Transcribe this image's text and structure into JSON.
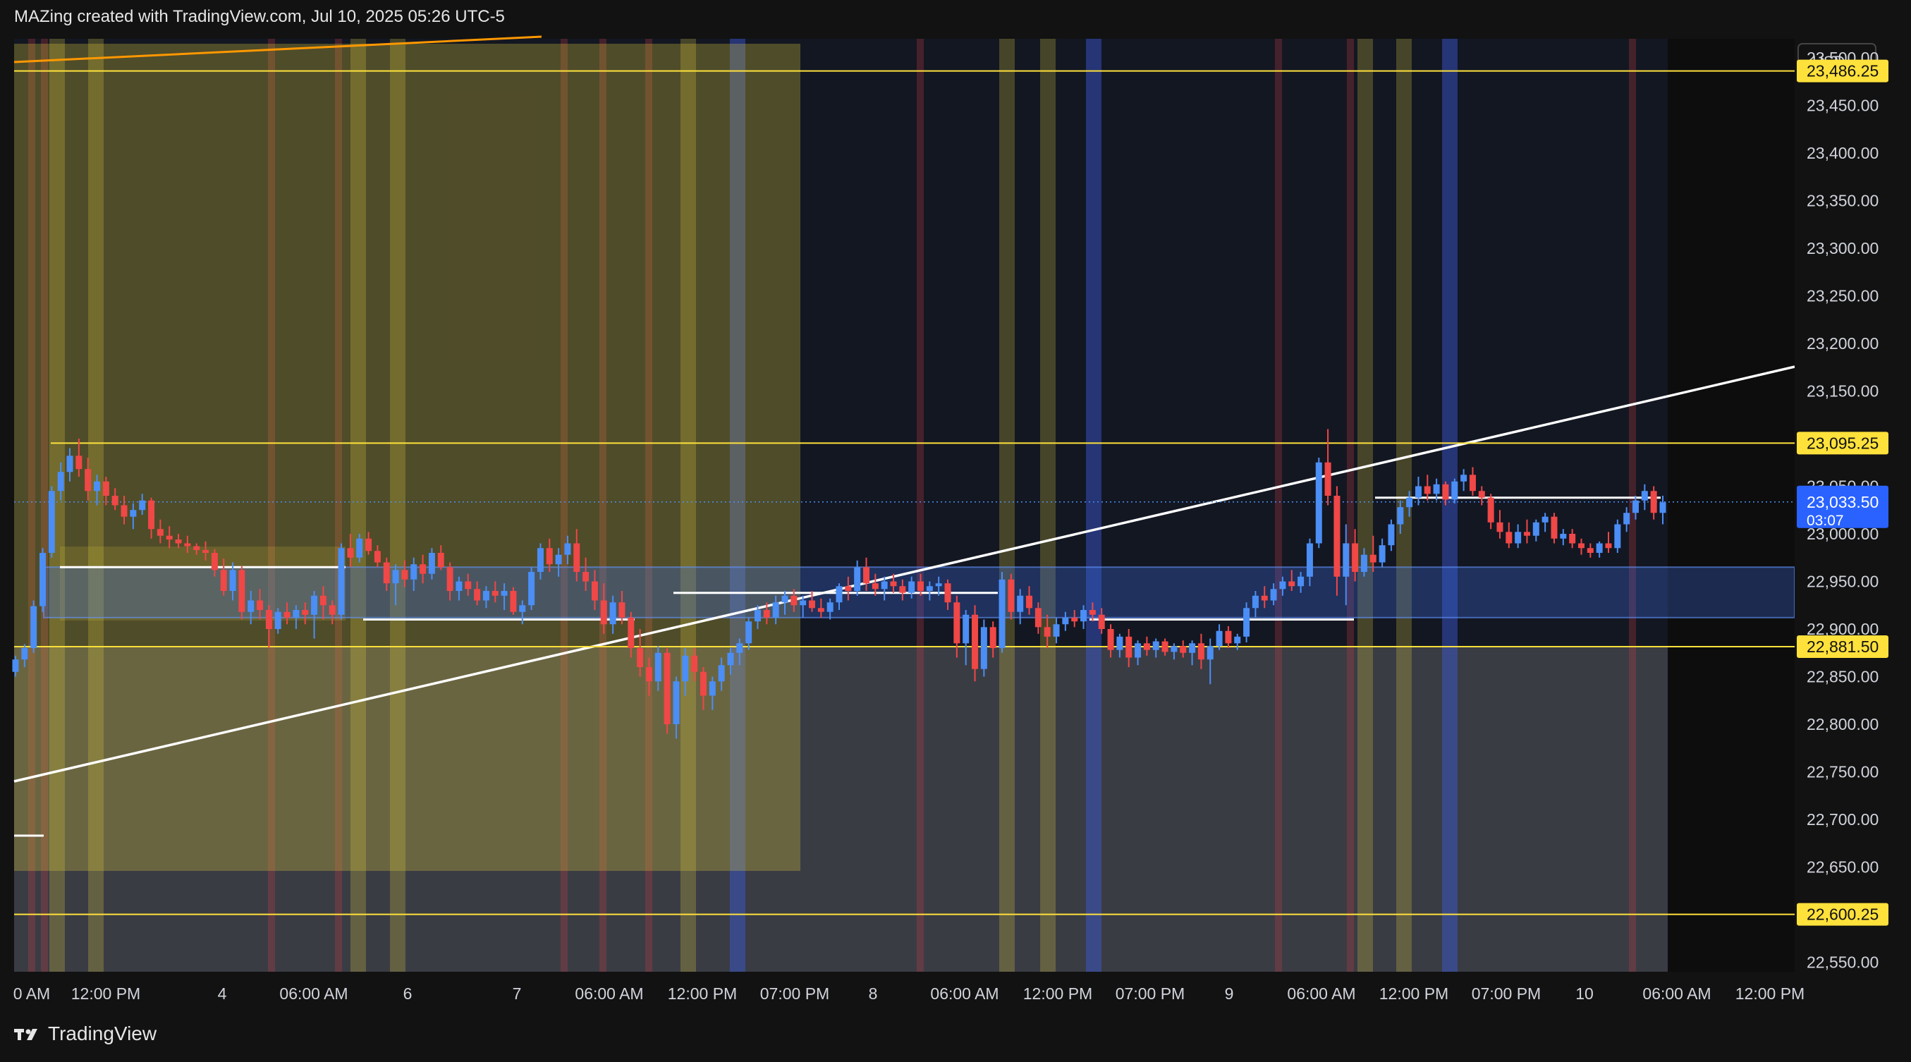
{
  "header": {
    "title": "MAZing created with TradingView.com, Jul 10, 2025 05:26 UTC-5"
  },
  "brand": {
    "name": "TradingView"
  },
  "colors": {
    "background": "#121212",
    "zone_bg": "#131722",
    "up_candle": "#4b8ef5",
    "down_candle": "#f04747",
    "level_line": "#ffe13b",
    "trend_line": "#ffffff",
    "price_tag": "#2962ff",
    "orange_line": "#ff9800"
  },
  "chart_data": {
    "type": "candlestick",
    "currency": "USD",
    "ylim": [
      22540,
      23520
    ],
    "y_ticks": [
      "23,500.00",
      "23,450.00",
      "23,400.00",
      "23,350.00",
      "23,300.00",
      "23,250.00",
      "23,200.00",
      "23,150.00",
      "23,100.00",
      "23,050.00",
      "23,000.00",
      "22,950.00",
      "22,900.00",
      "22,850.00",
      "22,800.00",
      "22,750.00",
      "22,700.00",
      "22,650.00",
      "22,600.00",
      "22,550.00"
    ],
    "x_labels": [
      "0 AM",
      "12:00 PM",
      "4",
      "06:00 AM",
      "6",
      "7",
      "06:00 AM",
      "12:00 PM",
      "07:00 PM",
      "8",
      "06:00 AM",
      "12:00 PM",
      "07:00 PM",
      "9",
      "06:00 AM",
      "12:00 PM",
      "07:00 PM",
      "10",
      "06:00 AM",
      "12:00 PM"
    ],
    "levels": [
      {
        "label": "23,486.25",
        "value": 23486.25
      },
      {
        "label": "23,095.25",
        "value": 23095.25
      },
      {
        "label": "22,881.50",
        "value": 22881.5
      },
      {
        "label": "22,600.25",
        "value": 22600.25
      }
    ],
    "current_price": {
      "label": "23,033.50",
      "value": 23033.5,
      "countdown": "03:07"
    },
    "candles": [
      [
        22855,
        22872,
        22850,
        22868
      ],
      [
        22868,
        22884,
        22860,
        22880
      ],
      [
        22880,
        22930,
        22875,
        22924
      ],
      [
        22924,
        22985,
        22918,
        22980
      ],
      [
        22980,
        23050,
        22975,
        23045
      ],
      [
        23045,
        23075,
        23035,
        23065
      ],
      [
        23065,
        23090,
        23055,
        23082
      ],
      [
        23082,
        23100,
        23060,
        23068
      ],
      [
        23068,
        23080,
        23035,
        23045
      ],
      [
        23045,
        23062,
        23030,
        23055
      ],
      [
        23055,
        23060,
        23030,
        23040
      ],
      [
        23040,
        23048,
        23025,
        23030
      ],
      [
        23030,
        23040,
        23010,
        23018
      ],
      [
        23018,
        23032,
        23005,
        23025
      ],
      [
        23025,
        23042,
        23020,
        23035
      ],
      [
        23035,
        23038,
        22995,
        23005
      ],
      [
        23005,
        23015,
        22990,
        22998
      ],
      [
        22998,
        23008,
        22985,
        22994
      ],
      [
        22994,
        23000,
        22985,
        22990
      ],
      [
        22990,
        22998,
        22980,
        22987
      ],
      [
        22987,
        22990,
        22978,
        22983
      ],
      [
        22983,
        22992,
        22972,
        22980
      ],
      [
        22980,
        22984,
        22955,
        22962
      ],
      [
        22962,
        22974,
        22935,
        22940
      ],
      [
        22940,
        22970,
        22930,
        22962
      ],
      [
        22962,
        22966,
        22910,
        22918
      ],
      [
        22918,
        22940,
        22905,
        22930
      ],
      [
        22930,
        22942,
        22910,
        22920
      ],
      [
        22920,
        22925,
        22880,
        22900
      ],
      [
        22900,
        22922,
        22895,
        22918
      ],
      [
        22918,
        22928,
        22905,
        22912
      ],
      [
        22912,
        22925,
        22900,
        22920
      ],
      [
        22920,
        22928,
        22905,
        22915
      ],
      [
        22915,
        22940,
        22890,
        22935
      ],
      [
        22935,
        22945,
        22910,
        22925
      ],
      [
        22925,
        22930,
        22905,
        22915
      ],
      [
        22915,
        22990,
        22910,
        22985
      ],
      [
        22985,
        23000,
        22965,
        22975
      ],
      [
        22975,
        23000,
        22970,
        22995
      ],
      [
        22995,
        23002,
        22978,
        22982
      ],
      [
        22982,
        22988,
        22965,
        22970
      ],
      [
        22970,
        22975,
        22940,
        22948
      ],
      [
        22948,
        22968,
        22925,
        22962
      ],
      [
        22962,
        22972,
        22944,
        22952
      ],
      [
        22952,
        22975,
        22940,
        22968
      ],
      [
        22968,
        22978,
        22948,
        22958
      ],
      [
        22958,
        22985,
        22952,
        22980
      ],
      [
        22980,
        22988,
        22962,
        22965
      ],
      [
        22965,
        22970,
        22930,
        22940
      ],
      [
        22940,
        22955,
        22930,
        22950
      ],
      [
        22950,
        22958,
        22935,
        22942
      ],
      [
        22942,
        22950,
        22925,
        22930
      ],
      [
        22930,
        22945,
        22922,
        22940
      ],
      [
        22940,
        22950,
        22928,
        22935
      ],
      [
        22935,
        22948,
        22920,
        22940
      ],
      [
        22940,
        22944,
        22915,
        22918
      ],
      [
        22918,
        22930,
        22905,
        22925
      ],
      [
        22925,
        22965,
        22920,
        22960
      ],
      [
        22960,
        22990,
        22952,
        22985
      ],
      [
        22985,
        22995,
        22960,
        22968
      ],
      [
        22968,
        22985,
        22955,
        22978
      ],
      [
        22978,
        22998,
        22968,
        22990
      ],
      [
        22990,
        23005,
        22950,
        22960
      ],
      [
        22960,
        22975,
        22940,
        22950
      ],
      [
        22950,
        22962,
        22920,
        22930
      ],
      [
        22930,
        22948,
        22895,
        22905
      ],
      [
        22905,
        22935,
        22895,
        22928
      ],
      [
        22928,
        22940,
        22905,
        22912
      ],
      [
        22912,
        22918,
        22870,
        22880
      ],
      [
        22880,
        22900,
        22850,
        22860
      ],
      [
        22860,
        22870,
        22830,
        22845
      ],
      [
        22845,
        22882,
        22835,
        22875
      ],
      [
        22875,
        22880,
        22790,
        22800
      ],
      [
        22800,
        22850,
        22785,
        22845
      ],
      [
        22845,
        22880,
        22830,
        22872
      ],
      [
        22872,
        22880,
        22845,
        22855
      ],
      [
        22855,
        22860,
        22815,
        22830
      ],
      [
        22830,
        22850,
        22815,
        22845
      ],
      [
        22845,
        22870,
        22835,
        22862
      ],
      [
        22862,
        22880,
        22852,
        22875
      ],
      [
        22875,
        22890,
        22862,
        22885
      ],
      [
        22885,
        22912,
        22878,
        22908
      ],
      [
        22908,
        22925,
        22900,
        22920
      ],
      [
        22920,
        22928,
        22905,
        22912
      ],
      [
        22912,
        22935,
        22905,
        22928
      ],
      [
        22928,
        22940,
        22915,
        22935
      ],
      [
        22935,
        22942,
        22918,
        22925
      ],
      [
        22925,
        22935,
        22912,
        22930
      ],
      [
        22930,
        22940,
        22918,
        22922
      ],
      [
        22922,
        22932,
        22912,
        22918
      ],
      [
        22918,
        22932,
        22910,
        22928
      ],
      [
        22928,
        22948,
        22920,
        22945
      ],
      [
        22945,
        22955,
        22930,
        22940
      ],
      [
        22940,
        22972,
        22935,
        22965
      ],
      [
        22965,
        22975,
        22940,
        22948
      ],
      [
        22948,
        22958,
        22935,
        22942
      ],
      [
        22942,
        22955,
        22930,
        22950
      ],
      [
        22950,
        22958,
        22938,
        22945
      ],
      [
        22945,
        22952,
        22930,
        22938
      ],
      [
        22938,
        22955,
        22932,
        22950
      ],
      [
        22950,
        22958,
        22935,
        22940
      ],
      [
        22940,
        22950,
        22930,
        22945
      ],
      [
        22945,
        22955,
        22935,
        22948
      ],
      [
        22948,
        22952,
        22920,
        22928
      ],
      [
        22928,
        22935,
        22870,
        22885
      ],
      [
        22885,
        22920,
        22862,
        22915
      ],
      [
        22915,
        22925,
        22845,
        22858
      ],
      [
        22858,
        22910,
        22850,
        22902
      ],
      [
        22902,
        22908,
        22870,
        22880
      ],
      [
        22880,
        22960,
        22875,
        22952
      ],
      [
        22952,
        22958,
        22910,
        22918
      ],
      [
        22918,
        22942,
        22905,
        22935
      ],
      [
        22935,
        22945,
        22915,
        22922
      ],
      [
        22922,
        22928,
        22895,
        22902
      ],
      [
        22902,
        22915,
        22880,
        22892
      ],
      [
        22892,
        22912,
        22885,
        22905
      ],
      [
        22905,
        22918,
        22898,
        22912
      ],
      [
        22912,
        22920,
        22902,
        22908
      ],
      [
        22908,
        22925,
        22900,
        22920
      ],
      [
        22920,
        22928,
        22908,
        22915
      ],
      [
        22915,
        22922,
        22895,
        22900
      ],
      [
        22900,
        22905,
        22870,
        22878
      ],
      [
        22878,
        22895,
        22870,
        22892
      ],
      [
        22892,
        22900,
        22860,
        22870
      ],
      [
        22870,
        22888,
        22862,
        22885
      ],
      [
        22885,
        22892,
        22872,
        22878
      ],
      [
        22878,
        22890,
        22870,
        22887
      ],
      [
        22887,
        22890,
        22872,
        22876
      ],
      [
        22876,
        22885,
        22868,
        22882
      ],
      [
        22882,
        22888,
        22870,
        22875
      ],
      [
        22875,
        22888,
        22862,
        22885
      ],
      [
        22885,
        22895,
        22858,
        22868
      ],
      [
        22868,
        22890,
        22842,
        22882
      ],
      [
        22882,
        22905,
        22878,
        22898
      ],
      [
        22898,
        22903,
        22880,
        22885
      ],
      [
        22885,
        22895,
        22878,
        22892
      ],
      [
        22892,
        22928,
        22886,
        22922
      ],
      [
        22922,
        22940,
        22912,
        22935
      ],
      [
        22935,
        22945,
        22922,
        22930
      ],
      [
        22930,
        22948,
        22925,
        22942
      ],
      [
        22942,
        22955,
        22935,
        22950
      ],
      [
        22950,
        22962,
        22940,
        22945
      ],
      [
        22945,
        22960,
        22938,
        22955
      ],
      [
        22955,
        22995,
        22945,
        22990
      ],
      [
        22990,
        23080,
        22985,
        23075
      ],
      [
        23075,
        23110,
        23030,
        23040
      ],
      [
        23040,
        23050,
        22935,
        22955
      ],
      [
        22955,
        23010,
        22925,
        22990
      ],
      [
        22990,
        23005,
        22950,
        22960
      ],
      [
        22960,
        22985,
        22955,
        22978
      ],
      [
        22978,
        22998,
        22960,
        22970
      ],
      [
        22970,
        22995,
        22965,
        22988
      ],
      [
        22988,
        23015,
        22982,
        23010
      ],
      [
        23010,
        23035,
        23000,
        23028
      ],
      [
        23028,
        23045,
        23018,
        23038
      ],
      [
        23038,
        23060,
        23030,
        23050
      ],
      [
        23050,
        23062,
        23035,
        23042
      ],
      [
        23042,
        23058,
        23035,
        23052
      ],
      [
        23052,
        23055,
        23030,
        23036
      ],
      [
        23036,
        23058,
        23032,
        23055
      ],
      [
        23055,
        23068,
        23045,
        23062
      ],
      [
        23062,
        23070,
        23040,
        23045
      ],
      [
        23045,
        23050,
        23030,
        23038
      ],
      [
        23038,
        23042,
        23005,
        23012
      ],
      [
        23012,
        23025,
        22995,
        23002
      ],
      [
        23002,
        23012,
        22985,
        22990
      ],
      [
        22990,
        23010,
        22985,
        23002
      ],
      [
        23002,
        23015,
        22990,
        22998
      ],
      [
        22998,
        23015,
        22992,
        23012
      ],
      [
        23012,
        23022,
        23002,
        23018
      ],
      [
        23018,
        23022,
        22990,
        22995
      ],
      [
        22995,
        23005,
        22988,
        23000
      ],
      [
        23000,
        23005,
        22985,
        22990
      ],
      [
        22990,
        22995,
        22978,
        22985
      ],
      [
        22985,
        22990,
        22975,
        22980
      ],
      [
        22980,
        22992,
        22975,
        22990
      ],
      [
        22990,
        23002,
        22980,
        22985
      ],
      [
        22985,
        23015,
        22980,
        23010
      ],
      [
        23010,
        23028,
        23002,
        23022
      ],
      [
        23022,
        23040,
        23015,
        23035
      ],
      [
        23035,
        23052,
        23025,
        23045
      ],
      [
        23045,
        23050,
        23015,
        23022
      ],
      [
        23022,
        23040,
        23010,
        23033
      ]
    ]
  }
}
